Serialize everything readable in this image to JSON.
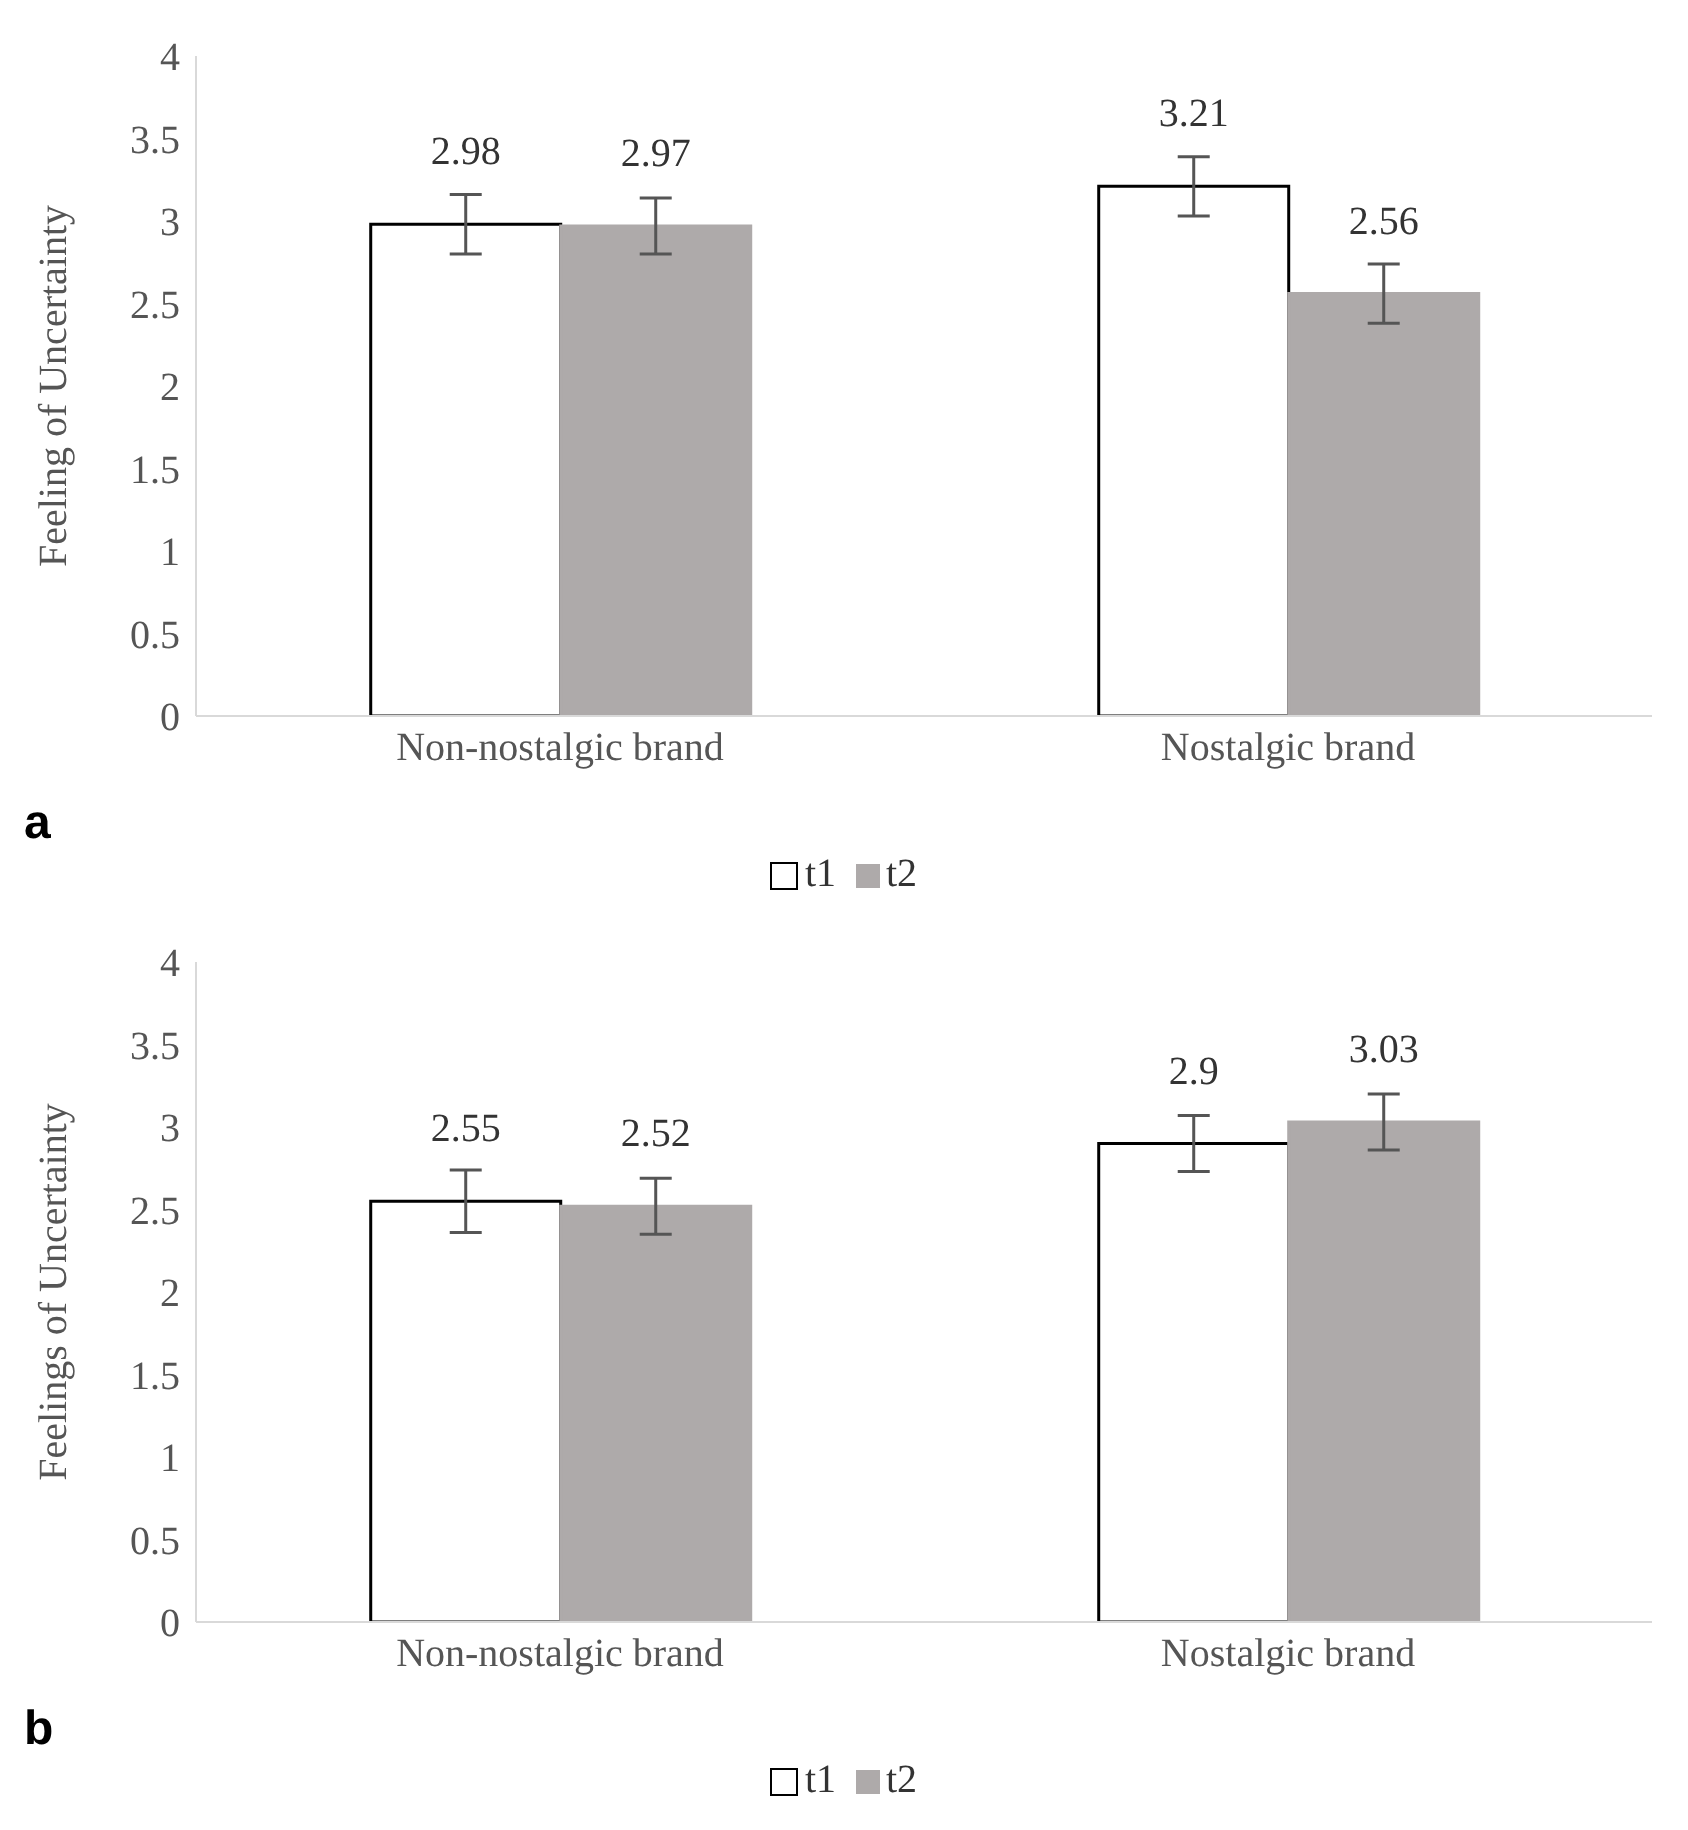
{
  "chart_data": [
    {
      "type": "bar",
      "ylabel": "Feeling of Uncertainty",
      "categories": [
        "Non-nostalgic brand",
        "Nostalgic brand"
      ],
      "series": [
        {
          "name": "t1",
          "color": "#ffffff",
          "values": [
            2.98,
            3.21
          ],
          "errors": [
            0.18,
            0.18
          ]
        },
        {
          "name": "t2",
          "color": "#aeaaaa",
          "values": [
            2.97,
            2.56
          ],
          "errors": [
            0.17,
            0.18
          ]
        }
      ],
      "ylim": [
        0,
        4
      ],
      "yticks": [
        0,
        0.5,
        1,
        1.5,
        2,
        2.5,
        3,
        3.5,
        4
      ],
      "grid": false,
      "legend": "bottom",
      "data_labels": true,
      "annotations": [
        "a"
      ]
    },
    {
      "type": "bar",
      "ylabel": "Feelings of Uncertainty",
      "categories": [
        "Non-nostalgic brand",
        "Nostalgic brand"
      ],
      "series": [
        {
          "name": "t1",
          "color": "#ffffff",
          "values": [
            2.55,
            2.9
          ],
          "errors": [
            0.19,
            0.17
          ]
        },
        {
          "name": "t2",
          "color": "#aeaaaa",
          "values": [
            2.52,
            3.03
          ],
          "errors": [
            0.17,
            0.17
          ]
        }
      ],
      "ylim": [
        0,
        4
      ],
      "yticks": [
        0,
        0.5,
        1,
        1.5,
        2,
        2.5,
        3,
        3.5,
        4
      ],
      "grid": false,
      "legend": "bottom",
      "data_labels": true,
      "annotations": [
        "b"
      ]
    }
  ]
}
